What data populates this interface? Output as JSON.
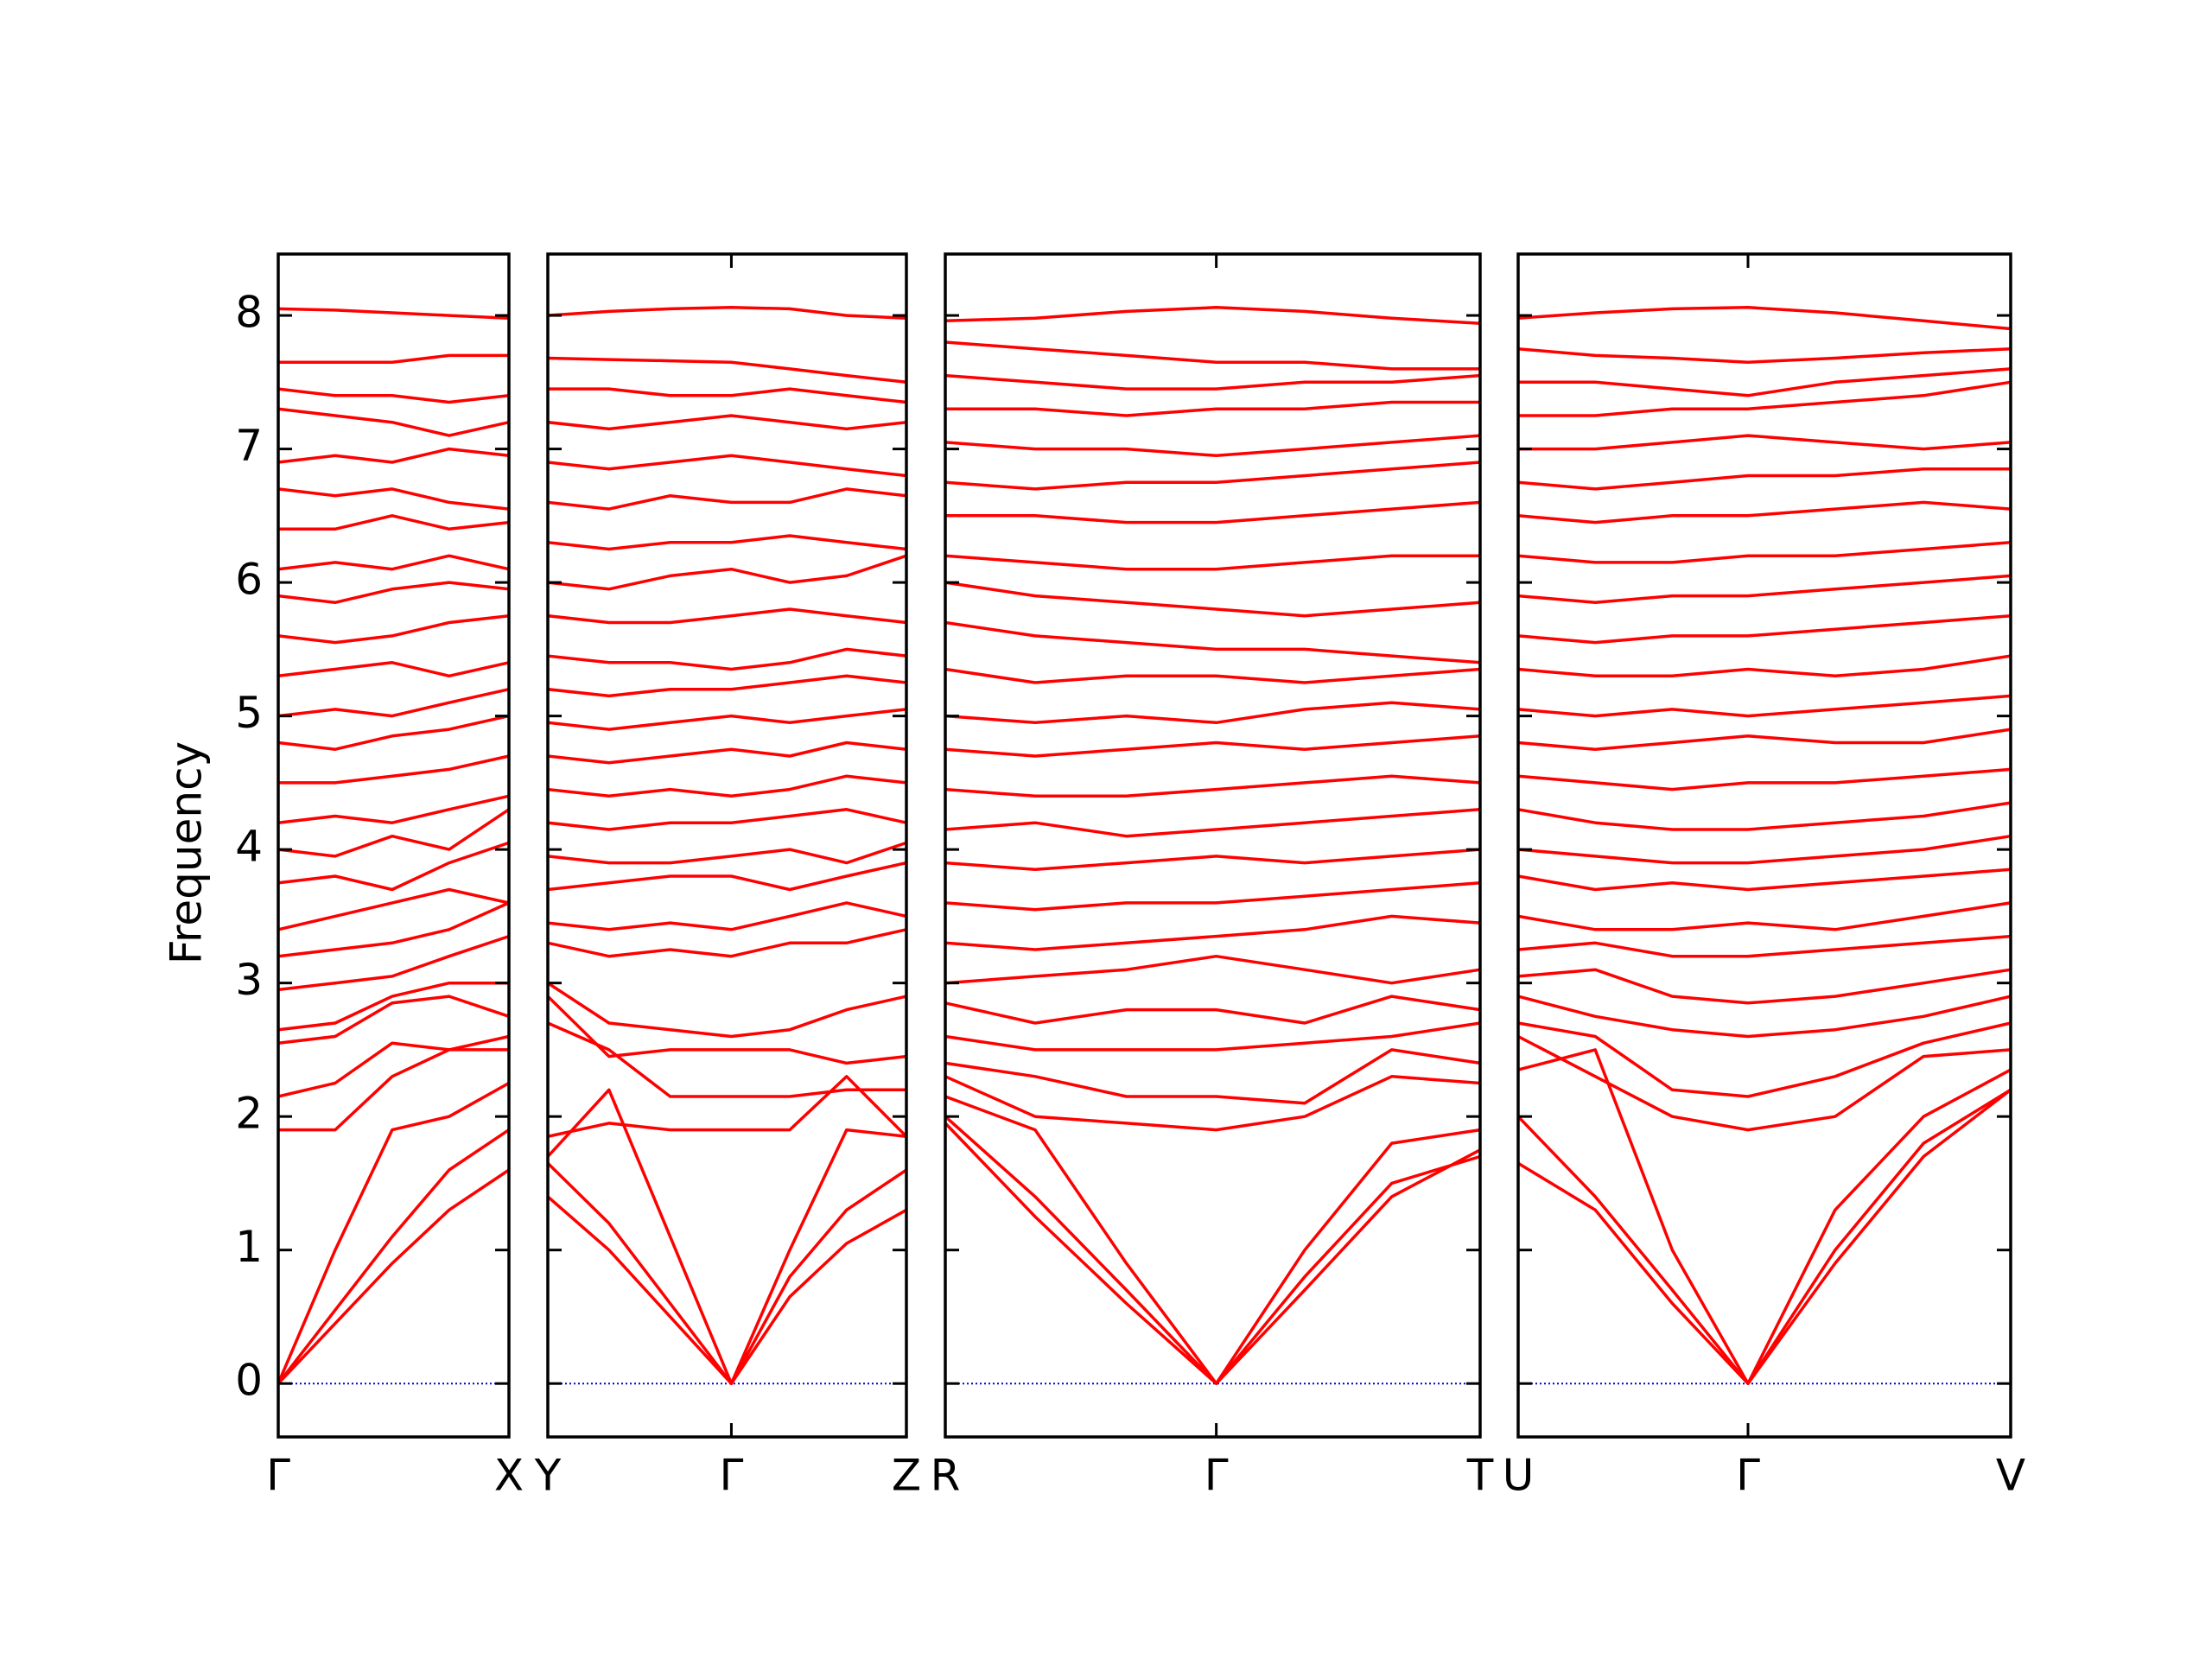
{
  "chart_data": [
    {
      "type": "line",
      "ylabel": "Frequency",
      "x": [
        0,
        0.4,
        0.8,
        1.2,
        1.62
      ],
      "xlim": [
        0,
        1.62
      ],
      "ylim": [
        -0.4,
        8.46
      ],
      "yticks": [
        0,
        1,
        2,
        3,
        4,
        5,
        6,
        7,
        8
      ],
      "xticks": [
        {
          "value": 0,
          "label": "Γ"
        },
        {
          "value": 1.62,
          "label": "X"
        }
      ],
      "color": "#ff0000",
      "hline": 0,
      "hline_color": "#0000cc",
      "bands": [
        [
          0,
          0.45,
          0.9,
          1.3,
          1.6
        ],
        [
          0,
          0.55,
          1.1,
          1.6,
          1.9
        ],
        [
          0,
          1.0,
          1.9,
          2.0,
          2.25
        ],
        [
          1.9,
          1.9,
          2.3,
          2.5,
          2.5
        ],
        [
          2.15,
          2.25,
          2.55,
          2.5,
          2.6
        ],
        [
          2.55,
          2.6,
          2.85,
          2.9,
          2.75
        ],
        [
          2.65,
          2.7,
          2.9,
          3.0,
          3.0
        ],
        [
          2.95,
          3.0,
          3.05,
          3.2,
          3.35
        ],
        [
          3.2,
          3.25,
          3.3,
          3.4,
          3.6
        ],
        [
          3.4,
          3.5,
          3.6,
          3.7,
          3.6
        ],
        [
          3.75,
          3.8,
          3.7,
          3.9,
          4.05
        ],
        [
          4.0,
          3.95,
          4.1,
          4.0,
          4.3
        ],
        [
          4.2,
          4.25,
          4.2,
          4.3,
          4.4
        ],
        [
          4.5,
          4.5,
          4.55,
          4.6,
          4.7
        ],
        [
          4.8,
          4.75,
          4.85,
          4.9,
          5.0
        ],
        [
          5.0,
          5.05,
          5.0,
          5.1,
          5.2
        ],
        [
          5.3,
          5.35,
          5.4,
          5.3,
          5.4
        ],
        [
          5.6,
          5.55,
          5.6,
          5.7,
          5.75
        ],
        [
          5.9,
          5.85,
          5.95,
          6.0,
          5.95
        ],
        [
          6.1,
          6.15,
          6.1,
          6.2,
          6.1
        ],
        [
          6.4,
          6.4,
          6.5,
          6.4,
          6.45
        ],
        [
          6.7,
          6.65,
          6.7,
          6.6,
          6.55
        ],
        [
          6.9,
          6.95,
          6.9,
          7.0,
          6.95
        ],
        [
          7.3,
          7.25,
          7.2,
          7.1,
          7.2
        ],
        [
          7.45,
          7.4,
          7.4,
          7.35,
          7.4
        ],
        [
          7.65,
          7.65,
          7.65,
          7.7,
          7.7
        ],
        [
          8.05,
          8.04,
          8.02,
          8.0,
          7.98
        ]
      ]
    },
    {
      "type": "line",
      "x": [
        0,
        0.43,
        0.86,
        1.29,
        1.7,
        2.1,
        2.52
      ],
      "xlim": [
        0,
        2.52
      ],
      "ylim": [
        -0.4,
        8.46
      ],
      "xticks": [
        {
          "value": 0,
          "label": "Y"
        },
        {
          "value": 1.29,
          "label": "Γ"
        },
        {
          "value": 2.52,
          "label": "Z"
        }
      ],
      "color": "#ff0000",
      "hline": 0,
      "hline_color": "#0000cc",
      "bands": [
        [
          1.4,
          1.0,
          0.5,
          0,
          0.65,
          1.05,
          1.3
        ],
        [
          1.65,
          1.2,
          0.6,
          0,
          0.8,
          1.3,
          1.6
        ],
        [
          1.7,
          2.2,
          1.1,
          0,
          1.0,
          1.9,
          1.85
        ],
        [
          1.85,
          1.95,
          1.9,
          1.9,
          1.9,
          2.3,
          1.85
        ],
        [
          2.7,
          2.5,
          2.15,
          2.15,
          2.15,
          2.2,
          2.2
        ],
        [
          2.9,
          2.45,
          2.5,
          2.5,
          2.5,
          2.4,
          2.45
        ],
        [
          3.0,
          2.7,
          2.65,
          2.6,
          2.65,
          2.8,
          2.9
        ],
        [
          3.3,
          3.2,
          3.25,
          3.2,
          3.3,
          3.3,
          3.4
        ],
        [
          3.45,
          3.4,
          3.45,
          3.4,
          3.5,
          3.6,
          3.5
        ],
        [
          3.7,
          3.75,
          3.8,
          3.8,
          3.7,
          3.8,
          3.9
        ],
        [
          3.95,
          3.9,
          3.9,
          3.95,
          4.0,
          3.9,
          4.05
        ],
        [
          4.2,
          4.15,
          4.2,
          4.2,
          4.25,
          4.3,
          4.2
        ],
        [
          4.45,
          4.4,
          4.45,
          4.4,
          4.45,
          4.55,
          4.5
        ],
        [
          4.7,
          4.65,
          4.7,
          4.75,
          4.7,
          4.8,
          4.75
        ],
        [
          4.95,
          4.9,
          4.95,
          5.0,
          4.95,
          5.0,
          5.05
        ],
        [
          5.2,
          5.15,
          5.2,
          5.2,
          5.25,
          5.3,
          5.25
        ],
        [
          5.45,
          5.4,
          5.4,
          5.35,
          5.4,
          5.5,
          5.45
        ],
        [
          5.75,
          5.7,
          5.7,
          5.75,
          5.8,
          5.75,
          5.7
        ],
        [
          6.0,
          5.95,
          6.05,
          6.1,
          6.0,
          6.05,
          6.2
        ],
        [
          6.3,
          6.25,
          6.3,
          6.3,
          6.35,
          6.3,
          6.25
        ],
        [
          6.6,
          6.55,
          6.65,
          6.6,
          6.6,
          6.7,
          6.65
        ],
        [
          6.9,
          6.85,
          6.9,
          6.95,
          6.9,
          6.85,
          6.8
        ],
        [
          7.2,
          7.15,
          7.2,
          7.25,
          7.2,
          7.15,
          7.2
        ],
        [
          7.45,
          7.45,
          7.4,
          7.4,
          7.45,
          7.4,
          7.35
        ],
        [
          7.68,
          7.67,
          7.66,
          7.65,
          7.6,
          7.55,
          7.5
        ],
        [
          8.0,
          8.03,
          8.05,
          8.06,
          8.05,
          8.0,
          7.98
        ]
      ]
    },
    {
      "type": "line",
      "x": [
        0,
        0.63,
        1.27,
        1.9,
        2.52,
        3.13,
        3.75
      ],
      "xlim": [
        0,
        3.75
      ],
      "ylim": [
        -0.4,
        8.46
      ],
      "xticks": [
        {
          "value": 0,
          "label": "R"
        },
        {
          "value": 1.9,
          "label": "Γ"
        },
        {
          "value": 3.75,
          "label": "T"
        }
      ],
      "color": "#ff0000",
      "hline": 0,
      "hline_color": "#0000cc",
      "bands": [
        [
          2.0,
          1.4,
          0.7,
          0,
          0.8,
          1.5,
          1.7
        ],
        [
          1.95,
          1.25,
          0.6,
          0,
          0.7,
          1.4,
          1.75
        ],
        [
          2.15,
          1.9,
          0.9,
          0,
          1.0,
          1.8,
          1.9
        ],
        [
          2.3,
          2.0,
          1.95,
          1.9,
          2.0,
          2.3,
          2.25
        ],
        [
          2.4,
          2.3,
          2.15,
          2.15,
          2.1,
          2.5,
          2.4
        ],
        [
          2.6,
          2.5,
          2.5,
          2.5,
          2.55,
          2.6,
          2.7
        ],
        [
          2.85,
          2.7,
          2.8,
          2.8,
          2.7,
          2.9,
          2.8
        ],
        [
          3.0,
          3.05,
          3.1,
          3.2,
          3.1,
          3.0,
          3.1
        ],
        [
          3.3,
          3.25,
          3.3,
          3.35,
          3.4,
          3.5,
          3.45
        ],
        [
          3.6,
          3.55,
          3.6,
          3.6,
          3.65,
          3.7,
          3.75
        ],
        [
          3.9,
          3.85,
          3.9,
          3.95,
          3.9,
          3.95,
          4.0
        ],
        [
          4.15,
          4.2,
          4.1,
          4.15,
          4.2,
          4.25,
          4.3
        ],
        [
          4.45,
          4.4,
          4.4,
          4.45,
          4.5,
          4.55,
          4.5
        ],
        [
          4.75,
          4.7,
          4.75,
          4.8,
          4.75,
          4.8,
          4.85
        ],
        [
          5.0,
          4.95,
          5.0,
          4.95,
          5.05,
          5.1,
          5.05
        ],
        [
          5.35,
          5.25,
          5.3,
          5.3,
          5.25,
          5.3,
          5.35
        ],
        [
          5.7,
          5.6,
          5.55,
          5.5,
          5.5,
          5.45,
          5.4
        ],
        [
          6.0,
          5.9,
          5.85,
          5.8,
          5.75,
          5.8,
          5.85
        ],
        [
          6.2,
          6.15,
          6.1,
          6.1,
          6.15,
          6.2,
          6.2
        ],
        [
          6.5,
          6.5,
          6.45,
          6.45,
          6.5,
          6.55,
          6.6
        ],
        [
          6.75,
          6.7,
          6.75,
          6.75,
          6.8,
          6.85,
          6.9
        ],
        [
          7.05,
          7.0,
          7.0,
          6.95,
          7.0,
          7.05,
          7.1
        ],
        [
          7.3,
          7.3,
          7.25,
          7.3,
          7.3,
          7.35,
          7.35
        ],
        [
          7.55,
          7.5,
          7.45,
          7.45,
          7.5,
          7.5,
          7.55
        ],
        [
          7.8,
          7.75,
          7.7,
          7.65,
          7.65,
          7.6,
          7.6
        ],
        [
          7.96,
          7.98,
          8.03,
          8.06,
          8.03,
          7.98,
          7.94
        ]
      ]
    },
    {
      "type": "line",
      "x": [
        0,
        0.54,
        1.08,
        1.61,
        2.22,
        2.84,
        3.45
      ],
      "xlim": [
        0,
        3.45
      ],
      "ylim": [
        -0.4,
        8.46
      ],
      "xticks": [
        {
          "value": 0,
          "label": "U"
        },
        {
          "value": 1.61,
          "label": "Γ"
        },
        {
          "value": 3.45,
          "label": "V"
        }
      ],
      "color": "#ff0000",
      "hline": 0,
      "hline_color": "#0000cc",
      "bands": [
        [
          1.65,
          1.3,
          0.6,
          0,
          1.0,
          1.8,
          2.2
        ],
        [
          2.0,
          1.4,
          0.7,
          0,
          0.9,
          1.7,
          2.2
        ],
        [
          2.35,
          2.5,
          1.0,
          0,
          1.3,
          2.0,
          2.35
        ],
        [
          2.6,
          2.3,
          2.0,
          1.9,
          2.0,
          2.45,
          2.5
        ],
        [
          2.7,
          2.6,
          2.2,
          2.15,
          2.3,
          2.55,
          2.7
        ],
        [
          2.9,
          2.75,
          2.65,
          2.6,
          2.65,
          2.75,
          2.9
        ],
        [
          3.05,
          3.1,
          2.9,
          2.85,
          2.9,
          3.0,
          3.1
        ],
        [
          3.25,
          3.3,
          3.2,
          3.2,
          3.25,
          3.3,
          3.35
        ],
        [
          3.5,
          3.4,
          3.4,
          3.45,
          3.4,
          3.5,
          3.6
        ],
        [
          3.8,
          3.7,
          3.75,
          3.7,
          3.75,
          3.8,
          3.85
        ],
        [
          4.0,
          3.95,
          3.9,
          3.9,
          3.95,
          4.0,
          4.1
        ],
        [
          4.3,
          4.2,
          4.15,
          4.15,
          4.2,
          4.25,
          4.35
        ],
        [
          4.55,
          4.5,
          4.45,
          4.5,
          4.5,
          4.55,
          4.6
        ],
        [
          4.8,
          4.75,
          4.8,
          4.85,
          4.8,
          4.8,
          4.9
        ],
        [
          5.05,
          5.0,
          5.05,
          5.0,
          5.05,
          5.1,
          5.15
        ],
        [
          5.35,
          5.3,
          5.3,
          5.35,
          5.3,
          5.35,
          5.45
        ],
        [
          5.6,
          5.55,
          5.6,
          5.6,
          5.65,
          5.7,
          5.75
        ],
        [
          5.9,
          5.85,
          5.9,
          5.9,
          5.95,
          6.0,
          6.05
        ],
        [
          6.2,
          6.15,
          6.15,
          6.2,
          6.2,
          6.25,
          6.3
        ],
        [
          6.5,
          6.45,
          6.5,
          6.5,
          6.55,
          6.6,
          6.55
        ],
        [
          6.75,
          6.7,
          6.75,
          6.8,
          6.8,
          6.85,
          6.85
        ],
        [
          7.0,
          7.0,
          7.05,
          7.1,
          7.05,
          7.0,
          7.05
        ],
        [
          7.25,
          7.25,
          7.3,
          7.3,
          7.35,
          7.4,
          7.5
        ],
        [
          7.5,
          7.5,
          7.45,
          7.4,
          7.5,
          7.55,
          7.6
        ],
        [
          7.75,
          7.7,
          7.68,
          7.65,
          7.68,
          7.72,
          7.75
        ],
        [
          7.98,
          8.02,
          8.05,
          8.06,
          8.02,
          7.96,
          7.9
        ]
      ]
    }
  ]
}
